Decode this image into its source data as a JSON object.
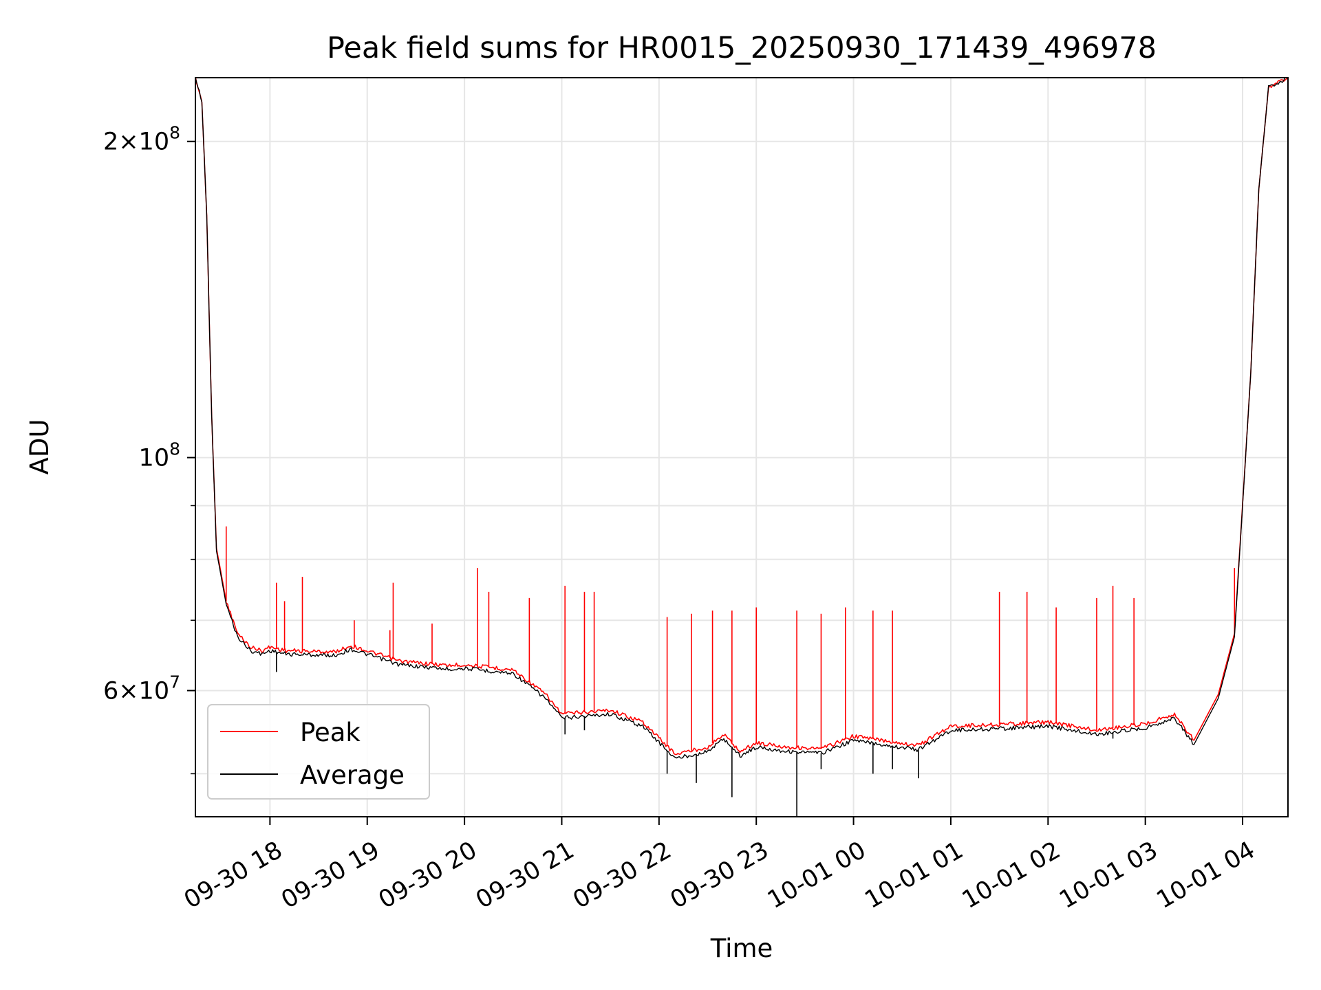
{
  "chart_data": {
    "type": "line",
    "title": "Peak field sums for HR0015_20250930_171439_496978",
    "xlabel": "Time",
    "ylabel": "ADU",
    "y_scale": "log",
    "ylim": [
      45500000,
      230000000
    ],
    "xlim": [
      "2025-09-30 17:14",
      "2025-10-01 04:28"
    ],
    "grid": true,
    "legend_position": "lower-left",
    "x_ticks": [
      {
        "t": "2025-09-30 18:00",
        "label": "09-30 18"
      },
      {
        "t": "2025-09-30 19:00",
        "label": "09-30 19"
      },
      {
        "t": "2025-09-30 20:00",
        "label": "09-30 20"
      },
      {
        "t": "2025-09-30 21:00",
        "label": "09-30 21"
      },
      {
        "t": "2025-09-30 22:00",
        "label": "09-30 22"
      },
      {
        "t": "2025-09-30 23:00",
        "label": "09-30 23"
      },
      {
        "t": "2025-10-01 00:00",
        "label": "10-01 00"
      },
      {
        "t": "2025-10-01 01:00",
        "label": "10-01 01"
      },
      {
        "t": "2025-10-01 02:00",
        "label": "10-01 02"
      },
      {
        "t": "2025-10-01 03:00",
        "label": "10-01 03"
      },
      {
        "t": "2025-10-01 04:00",
        "label": "10-01 04"
      }
    ],
    "y_major_ticks": [
      {
        "value": 60000000,
        "mantissa": "6",
        "exponent": "7"
      },
      {
        "value": 100000000,
        "mantissa": "",
        "exponent": "8"
      },
      {
        "value": 200000000,
        "mantissa": "2",
        "exponent": "8"
      }
    ],
    "y_minor_ticks": [
      50000000,
      70000000,
      80000000,
      90000000
    ],
    "series": [
      {
        "name": "Peak",
        "color": "#ff0000",
        "points": [
          [
            "2025-09-30 17:14",
            230000000
          ],
          [
            "2025-09-30 17:18",
            218000000
          ],
          [
            "2025-09-30 17:21",
            170000000
          ],
          [
            "2025-09-30 17:24",
            110000000
          ],
          [
            "2025-09-30 17:27",
            82000000
          ],
          [
            "2025-09-30 17:33",
            73000000
          ],
          [
            "2025-09-30 17:40",
            68000000
          ],
          [
            "2025-09-30 17:48",
            66000000
          ],
          [
            "2025-09-30 17:55",
            65500000
          ],
          [
            "2025-09-30 18:00",
            66000000
          ],
          [
            "2025-09-30 18:10",
            65500000
          ],
          [
            "2025-09-30 18:40",
            65300000
          ],
          [
            "2025-09-30 18:50",
            66200000
          ],
          [
            "2025-09-30 19:20",
            64000000
          ],
          [
            "2025-09-30 19:50",
            63400000
          ],
          [
            "2025-09-30 20:00",
            63500000
          ],
          [
            "2025-09-30 20:30",
            62800000
          ],
          [
            "2025-09-30 20:50",
            59500000
          ],
          [
            "2025-09-30 21:00",
            57000000
          ],
          [
            "2025-09-30 21:30",
            57500000
          ],
          [
            "2025-09-30 21:50",
            56000000
          ],
          [
            "2025-09-30 22:10",
            52200000
          ],
          [
            "2025-09-30 22:30",
            53000000
          ],
          [
            "2025-09-30 22:40",
            54500000
          ],
          [
            "2025-09-30 22:50",
            52500000
          ],
          [
            "2025-09-30 23:00",
            53500000
          ],
          [
            "2025-09-30 23:20",
            53000000
          ],
          [
            "2025-09-30 23:40",
            52800000
          ],
          [
            "2025-10-01 00:00",
            54300000
          ],
          [
            "2025-10-01 00:40",
            53200000
          ],
          [
            "2025-10-01 01:00",
            55500000
          ],
          [
            "2025-10-01 01:30",
            55700000
          ],
          [
            "2025-10-01 02:00",
            56000000
          ],
          [
            "2025-10-01 02:30",
            55000000
          ],
          [
            "2025-10-01 03:00",
            55800000
          ],
          [
            "2025-10-01 03:18",
            57000000
          ],
          [
            "2025-10-01 03:30",
            53800000
          ],
          [
            "2025-10-01 03:45",
            59500000
          ],
          [
            "2025-10-01 03:55",
            68000000
          ],
          [
            "2025-10-01 04:05",
            120000000
          ],
          [
            "2025-10-01 04:10",
            180000000
          ],
          [
            "2025-10-01 04:16",
            225000000
          ],
          [
            "2025-10-01 04:28",
            230000000
          ]
        ],
        "spikes": [
          [
            "2025-09-30 17:33",
            86000000
          ],
          [
            "2025-09-30 18:04",
            76000000
          ],
          [
            "2025-09-30 18:09",
            73000000
          ],
          [
            "2025-09-30 18:20",
            77000000
          ],
          [
            "2025-09-30 18:52",
            70000000
          ],
          [
            "2025-09-30 19:14",
            68500000
          ],
          [
            "2025-09-30 19:16",
            76000000
          ],
          [
            "2025-09-30 19:40",
            69500000
          ],
          [
            "2025-09-30 20:08",
            78500000
          ],
          [
            "2025-09-30 20:15",
            74500000
          ],
          [
            "2025-09-30 20:40",
            73500000
          ],
          [
            "2025-09-30 21:02",
            75500000
          ],
          [
            "2025-09-30 21:14",
            74500000
          ],
          [
            "2025-09-30 21:20",
            74500000
          ],
          [
            "2025-09-30 22:05",
            70500000
          ],
          [
            "2025-09-30 22:20",
            71000000
          ],
          [
            "2025-09-30 22:33",
            71500000
          ],
          [
            "2025-09-30 22:45",
            71500000
          ],
          [
            "2025-09-30 23:00",
            72000000
          ],
          [
            "2025-09-30 23:25",
            71500000
          ],
          [
            "2025-09-30 23:40",
            71000000
          ],
          [
            "2025-09-30 23:55",
            72000000
          ],
          [
            "2025-10-01 00:12",
            71500000
          ],
          [
            "2025-10-01 00:24",
            71500000
          ],
          [
            "2025-10-01 01:30",
            74500000
          ],
          [
            "2025-10-01 01:47",
            74500000
          ],
          [
            "2025-10-01 02:05",
            72000000
          ],
          [
            "2025-10-01 02:30",
            73500000
          ],
          [
            "2025-10-01 02:40",
            75500000
          ],
          [
            "2025-10-01 02:53",
            73500000
          ],
          [
            "2025-10-01 03:55",
            78500000
          ]
        ]
      },
      {
        "name": "Average",
        "color": "#000000",
        "points": [
          [
            "2025-09-30 17:14",
            230000000
          ],
          [
            "2025-09-30 17:18",
            218000000
          ],
          [
            "2025-09-30 17:21",
            170000000
          ],
          [
            "2025-09-30 17:24",
            110000000
          ],
          [
            "2025-09-30 17:27",
            81500000
          ],
          [
            "2025-09-30 17:33",
            72500000
          ],
          [
            "2025-09-30 17:40",
            67500000
          ],
          [
            "2025-09-30 17:48",
            65500000
          ],
          [
            "2025-09-30 17:55",
            65000000
          ],
          [
            "2025-09-30 18:00",
            65500000
          ],
          [
            "2025-09-30 18:10",
            65000000
          ],
          [
            "2025-09-30 18:40",
            64800000
          ],
          [
            "2025-09-30 18:50",
            65700000
          ],
          [
            "2025-09-30 19:20",
            63500000
          ],
          [
            "2025-09-30 19:50",
            62900000
          ],
          [
            "2025-09-30 20:00",
            63000000
          ],
          [
            "2025-09-30 20:30",
            62300000
          ],
          [
            "2025-09-30 20:50",
            59000000
          ],
          [
            "2025-09-30 21:00",
            56500000
          ],
          [
            "2025-09-30 21:30",
            57000000
          ],
          [
            "2025-09-30 21:50",
            55500000
          ],
          [
            "2025-09-30 22:10",
            51700000
          ],
          [
            "2025-09-30 22:30",
            52500000
          ],
          [
            "2025-09-30 22:40",
            54000000
          ],
          [
            "2025-09-30 22:50",
            52000000
          ],
          [
            "2025-09-30 23:00",
            53000000
          ],
          [
            "2025-09-30 23:20",
            52500000
          ],
          [
            "2025-09-30 23:40",
            52300000
          ],
          [
            "2025-10-01 00:00",
            53800000
          ],
          [
            "2025-10-01 00:40",
            52700000
          ],
          [
            "2025-10-01 01:00",
            55000000
          ],
          [
            "2025-10-01 01:30",
            55200000
          ],
          [
            "2025-10-01 02:00",
            55500000
          ],
          [
            "2025-10-01 02:30",
            54500000
          ],
          [
            "2025-10-01 03:00",
            55300000
          ],
          [
            "2025-10-01 03:18",
            56500000
          ],
          [
            "2025-10-01 03:30",
            53300000
          ],
          [
            "2025-10-01 03:45",
            59000000
          ],
          [
            "2025-10-01 03:55",
            67500000
          ],
          [
            "2025-10-01 04:05",
            120000000
          ],
          [
            "2025-10-01 04:10",
            180000000
          ],
          [
            "2025-10-01 04:16",
            225000000
          ],
          [
            "2025-10-01 04:28",
            230000000
          ]
        ],
        "dips": [
          [
            "2025-09-30 18:04",
            62500000
          ],
          [
            "2025-09-30 21:02",
            54500000
          ],
          [
            "2025-09-30 21:14",
            55000000
          ],
          [
            "2025-09-30 22:05",
            50000000
          ],
          [
            "2025-09-30 22:23",
            49000000
          ],
          [
            "2025-09-30 22:45",
            47500000
          ],
          [
            "2025-09-30 23:25",
            45500000
          ],
          [
            "2025-09-30 23:40",
            50500000
          ],
          [
            "2025-10-01 00:12",
            50000000
          ],
          [
            "2025-10-01 00:24",
            50500000
          ],
          [
            "2025-10-01 00:40",
            49500000
          ],
          [
            "2025-10-01 02:40",
            54000000
          ]
        ]
      }
    ]
  }
}
